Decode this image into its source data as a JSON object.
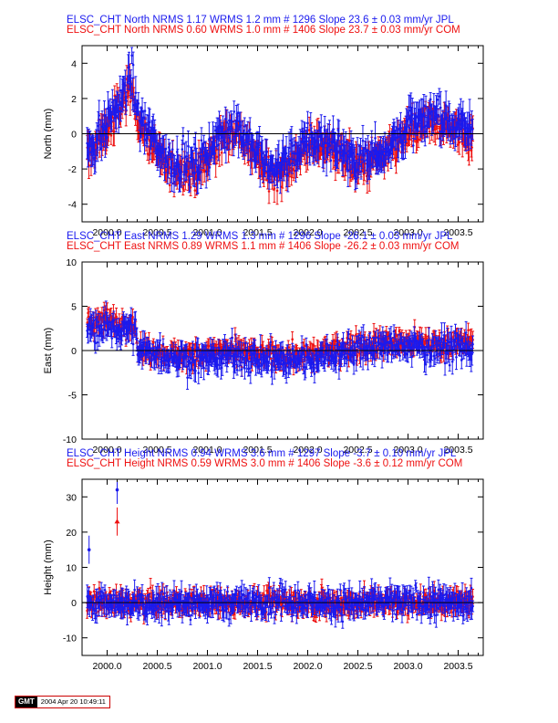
{
  "colors": {
    "jpl": "#1a1aee",
    "com": "#ee1111",
    "zero_line": "#000000"
  },
  "stamp": {
    "logo": "GMT",
    "timestamp": "2004 Apr 20 10:49:11"
  },
  "chart_data": [
    {
      "type": "scatter",
      "component": "North",
      "ylabel": "North (mm)",
      "xlim": [
        1999.75,
        2003.75
      ],
      "ylim": [
        -5,
        5
      ],
      "xticks": [
        "2000.0",
        "2000.5",
        "2001.0",
        "2001.5",
        "2002.0",
        "2002.5",
        "2003.0",
        "2003.5"
      ],
      "yticks": [
        "4",
        "2",
        "0",
        "-2",
        "-4"
      ],
      "legend": [
        {
          "series": "JPL",
          "text": "ELSC_CHT North NRMS 1.17 WRMS  1.2 mm # 1296 Slope   23.6 ±  0.03 mm/yr JPL"
        },
        {
          "series": "COM",
          "text": "ELSC_CHT North NRMS 0.60 WRMS  1.0 mm # 1406 Slope   23.7 ±  0.03 mm/yr COM"
        }
      ],
      "series": [
        {
          "name": "JPL",
          "points": 1296,
          "wrms": 1.2,
          "nrms": 1.17,
          "slope": 23.6,
          "slope_sigma": 0.03,
          "trend": [
            [
              1999.8,
              -1.0
            ],
            [
              2000.0,
              0.5
            ],
            [
              2000.25,
              3.2
            ],
            [
              2000.3,
              1.0
            ],
            [
              2000.6,
              -1.5
            ],
            [
              2000.9,
              -1.8
            ],
            [
              2001.1,
              -0.2
            ],
            [
              2001.3,
              0.5
            ],
            [
              2001.6,
              -2.0
            ],
            [
              2001.8,
              -1.5
            ],
            [
              2002.0,
              -0.5
            ],
            [
              2002.2,
              -0.3
            ],
            [
              2002.5,
              -1.5
            ],
            [
              2002.8,
              -0.8
            ],
            [
              2003.0,
              0.5
            ],
            [
              2003.3,
              1.0
            ],
            [
              2003.65,
              0.2
            ]
          ],
          "spread": 1.0
        },
        {
          "name": "COM",
          "points": 1406,
          "wrms": 1.0,
          "nrms": 0.6,
          "slope": 23.7,
          "slope_sigma": 0.03,
          "trend": [
            [
              1999.8,
              -1.3
            ],
            [
              2000.0,
              0.2
            ],
            [
              2000.25,
              2.8
            ],
            [
              2000.3,
              0.6
            ],
            [
              2000.6,
              -1.9
            ],
            [
              2000.9,
              -2.2
            ],
            [
              2001.1,
              -0.5
            ],
            [
              2001.3,
              0.2
            ],
            [
              2001.6,
              -2.3
            ],
            [
              2001.8,
              -1.8
            ],
            [
              2002.0,
              -0.8
            ],
            [
              2002.2,
              -0.6
            ],
            [
              2002.5,
              -1.9
            ],
            [
              2002.8,
              -1.2
            ],
            [
              2003.0,
              0.1
            ],
            [
              2003.3,
              0.6
            ],
            [
              2003.65,
              -0.2
            ]
          ],
          "spread": 0.9
        }
      ]
    },
    {
      "type": "scatter",
      "component": "East",
      "ylabel": "East (mm)",
      "xlim": [
        1999.75,
        2003.75
      ],
      "ylim": [
        -10,
        10
      ],
      "xticks": [
        "2000.0",
        "2000.5",
        "2001.0",
        "2001.5",
        "2002.0",
        "2002.5",
        "2003.0",
        "2003.5"
      ],
      "yticks": [
        "10",
        "5",
        "0",
        "-5",
        "-10"
      ],
      "legend": [
        {
          "series": "JPL",
          "text": "ELSC_CHT East NRMS 1.29 WRMS  1.3 mm # 1296 Slope  -26.1 ±  0.03 mm/yr JPL"
        },
        {
          "series": "COM",
          "text": "ELSC_CHT East NRMS 0.89 WRMS  1.1 mm # 1406 Slope  -26.2 ±  0.03 mm/yr COM"
        }
      ],
      "series": [
        {
          "name": "JPL",
          "points": 1296,
          "wrms": 1.3,
          "nrms": 1.29,
          "slope": -26.1,
          "slope_sigma": 0.03,
          "trend": [
            [
              1999.8,
              2.5
            ],
            [
              2000.28,
              2.5
            ],
            [
              2000.3,
              0.0
            ],
            [
              2000.8,
              -1.0
            ],
            [
              2001.2,
              -0.5
            ],
            [
              2001.6,
              -1.0
            ],
            [
              2002.0,
              -1.0
            ],
            [
              2002.4,
              0.0
            ],
            [
              2002.8,
              0.5
            ],
            [
              2003.2,
              0.3
            ],
            [
              2003.65,
              0.5
            ]
          ],
          "spread": 1.5
        },
        {
          "name": "COM",
          "points": 1406,
          "wrms": 1.1,
          "nrms": 0.89,
          "slope": -26.2,
          "slope_sigma": 0.03,
          "trend": [
            [
              1999.8,
              3.5
            ],
            [
              2000.28,
              3.0
            ],
            [
              2000.3,
              0.2
            ],
            [
              2000.8,
              -0.6
            ],
            [
              2001.2,
              0.0
            ],
            [
              2001.6,
              -0.6
            ],
            [
              2002.0,
              -0.6
            ],
            [
              2002.4,
              0.5
            ],
            [
              2002.8,
              1.0
            ],
            [
              2003.2,
              0.8
            ],
            [
              2003.65,
              1.0
            ]
          ],
          "spread": 1.2
        }
      ]
    },
    {
      "type": "scatter",
      "component": "Height",
      "ylabel": "Height (mm)",
      "xlim": [
        1999.75,
        2003.75
      ],
      "ylim": [
        -15,
        35
      ],
      "xticks": [
        "2000.0",
        "2000.5",
        "2001.0",
        "2001.5",
        "2002.0",
        "2002.5",
        "2003.0",
        "2003.5"
      ],
      "yticks": [
        "30",
        "20",
        "10",
        "0",
        "-10"
      ],
      "legend": [
        {
          "series": "JPL",
          "text": "ELSC_CHT Height NRMS 0.94 WRMS  3.6 mm # 1297 Slope   -3.7 ±  0.10 mm/yr JPL"
        },
        {
          "series": "COM",
          "text": "ELSC_CHT Height NRMS 0.59 WRMS  3.0 mm # 1406 Slope   -3.6 ±  0.12 mm/yr COM"
        }
      ],
      "series": [
        {
          "name": "JPL",
          "points": 1297,
          "wrms": 3.6,
          "nrms": 0.94,
          "slope": -3.7,
          "slope_sigma": 0.1,
          "trend": [
            [
              1999.8,
              0
            ],
            [
              2003.65,
              0
            ]
          ],
          "spread": 3.6,
          "outliers": [
            [
              2000.1,
              32
            ],
            [
              1999.82,
              15
            ]
          ]
        },
        {
          "name": "COM",
          "points": 1406,
          "wrms": 3.0,
          "nrms": 0.59,
          "slope": -3.6,
          "slope_sigma": 0.12,
          "trend": [
            [
              1999.8,
              0
            ],
            [
              2003.65,
              0
            ]
          ],
          "spread": 3.0,
          "outliers": [
            [
              2000.1,
              23
            ]
          ]
        }
      ]
    }
  ]
}
